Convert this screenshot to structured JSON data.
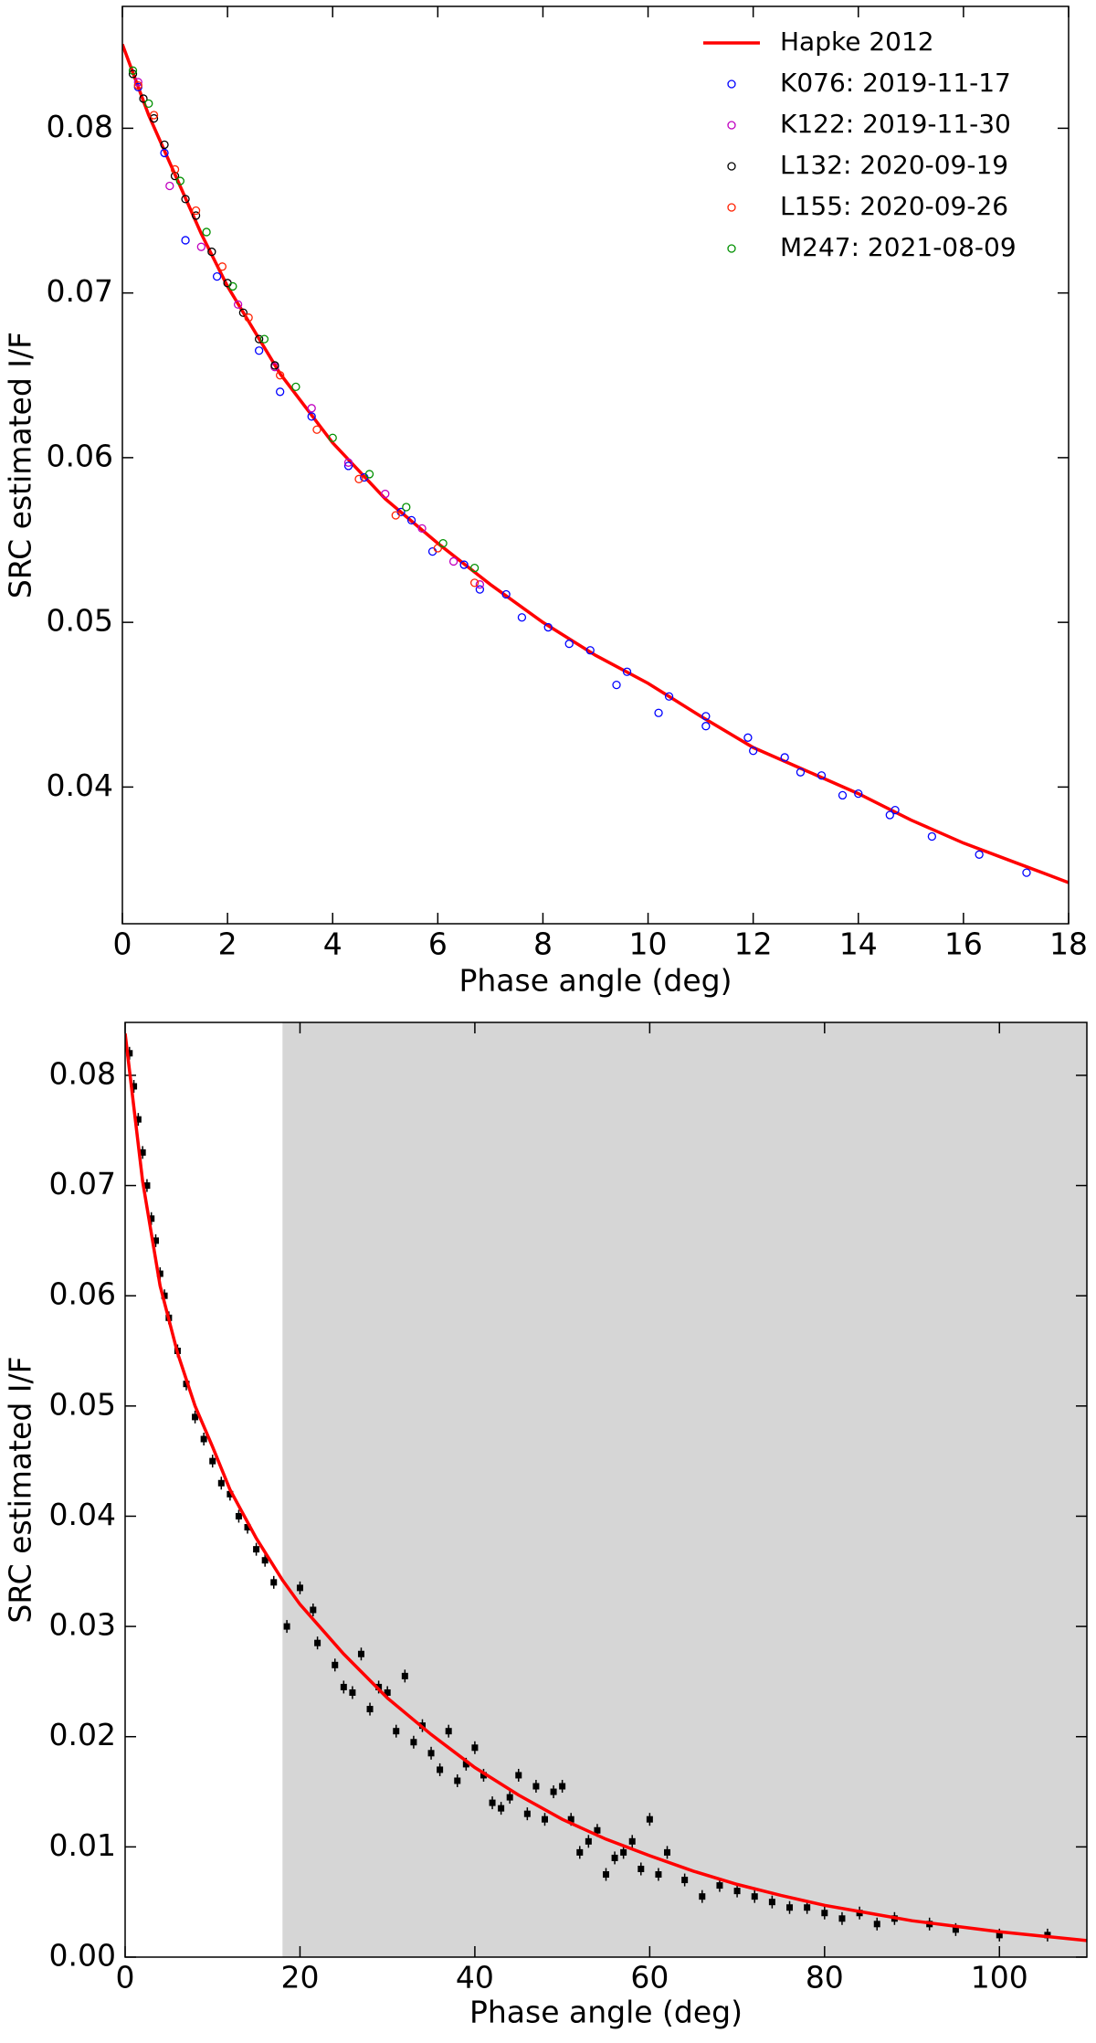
{
  "chart_data": [
    {
      "type": "scatter",
      "xlabel": "Phase angle (deg)",
      "ylabel": "SRC estimated I/F",
      "xlim": [
        0,
        18
      ],
      "ylim": [
        0.0317,
        0.0874
      ],
      "xticks": [
        0,
        2,
        4,
        6,
        8,
        10,
        12,
        14,
        16,
        18
      ],
      "yticks": [
        0.04,
        0.05,
        0.06,
        0.07,
        0.08
      ],
      "legend": "upper right",
      "series": [
        {
          "name": "Hapke 2012",
          "color": "#ff0000",
          "style": "line",
          "x": [
            0,
            0.5,
            1,
            1.5,
            2,
            3,
            4,
            5,
            6,
            7,
            8,
            9,
            10,
            11,
            12,
            13,
            14,
            15,
            16,
            17,
            18
          ],
          "values": [
            0.0851,
            0.0808,
            0.0772,
            0.0736,
            0.0704,
            0.0651,
            0.0609,
            0.0575,
            0.0548,
            0.0523,
            0.05,
            0.048,
            0.0463,
            0.0443,
            0.0424,
            0.041,
            0.0396,
            0.038,
            0.0366,
            0.0354,
            0.0342
          ]
        },
        {
          "name": "K076: 2019-11-17",
          "color": "#0000ff",
          "style": "open-circle",
          "x": [
            0.3,
            0.8,
            1.2,
            1.8,
            2.6,
            3,
            3.6,
            4.3,
            4.6,
            5.3,
            5.5,
            5.9,
            6.5,
            6.8,
            7.3,
            7.6,
            8.1,
            8.5,
            8.9,
            9.4,
            9.6,
            10.2,
            10.4,
            11.1,
            11.1,
            11.9,
            12,
            12.6,
            12.9,
            13.3,
            13.7,
            14,
            14.6,
            14.7,
            15.4,
            16.3,
            17.2
          ],
          "values": [
            0.0825,
            0.0785,
            0.0732,
            0.071,
            0.0665,
            0.064,
            0.0625,
            0.0595,
            0.0588,
            0.0567,
            0.0562,
            0.0543,
            0.0535,
            0.052,
            0.0517,
            0.0503,
            0.0497,
            0.0487,
            0.0483,
            0.0462,
            0.047,
            0.0445,
            0.0455,
            0.0437,
            0.0443,
            0.043,
            0.0422,
            0.0418,
            0.0409,
            0.0407,
            0.0395,
            0.0396,
            0.0383,
            0.0386,
            0.037,
            0.0359,
            0.0348
          ]
        },
        {
          "name": "K122: 2019-11-30",
          "color": "#c000c0",
          "style": "open-circle",
          "x": [
            0.3,
            0.9,
            1.5,
            2.2,
            2.9,
            3.6,
            4.3,
            5,
            5.7,
            6.3,
            6.8
          ],
          "values": [
            0.0828,
            0.0765,
            0.0728,
            0.0693,
            0.0655,
            0.063,
            0.0597,
            0.0578,
            0.0557,
            0.0537,
            0.0523
          ]
        },
        {
          "name": "L132: 2020-09-19",
          "color": "#000000",
          "style": "open-circle",
          "x": [
            0.2,
            0.4,
            0.6,
            0.8,
            1,
            1.2,
            1.4,
            1.7,
            2,
            2.3,
            2.6,
            2.9
          ],
          "values": [
            0.0833,
            0.0818,
            0.0806,
            0.079,
            0.0771,
            0.0757,
            0.0747,
            0.0725,
            0.0706,
            0.0688,
            0.0672,
            0.0656
          ]
        },
        {
          "name": "L155: 2020-09-26",
          "color": "#ff2000",
          "style": "open-circle",
          "x": [
            0.3,
            0.6,
            1,
            1.4,
            1.9,
            2.4,
            3,
            3.7,
            4.5,
            5.2,
            6,
            6.7
          ],
          "values": [
            0.0826,
            0.0808,
            0.0775,
            0.075,
            0.0716,
            0.0685,
            0.065,
            0.0617,
            0.0587,
            0.0565,
            0.0545,
            0.0524
          ]
        },
        {
          "name": "M247: 2021-08-09",
          "color": "#009000",
          "style": "open-circle",
          "x": [
            0.2,
            0.5,
            1.1,
            1.6,
            2.1,
            2.7,
            3.3,
            4,
            4.7,
            5.4,
            6.1,
            6.7
          ],
          "values": [
            0.0835,
            0.0815,
            0.0768,
            0.0737,
            0.0704,
            0.0672,
            0.0643,
            0.0612,
            0.059,
            0.057,
            0.0548,
            0.0533
          ]
        }
      ]
    },
    {
      "type": "scatter",
      "xlabel": "Phase angle (deg)",
      "ylabel": "SRC estimated I/F",
      "xlim": [
        0,
        110
      ],
      "ylim": [
        0,
        0.0848
      ],
      "xticks": [
        0,
        20,
        40,
        60,
        80,
        100
      ],
      "yticks": [
        {
          "value": 0,
          "label": "0.00"
        },
        0.01,
        0.02,
        0.03,
        0.04,
        0.05,
        0.06,
        0.07,
        0.08
      ],
      "shade_x": [
        18,
        110
      ],
      "shade_color": "#d6d6d6",
      "series": [
        {
          "color": "#000000",
          "style": "dot",
          "x": [
            0.5,
            1,
            1.5,
            2,
            2.5,
            3,
            3.5,
            4,
            4.5,
            5,
            6,
            7,
            8,
            9,
            10,
            11,
            12,
            13,
            14,
            15,
            16,
            17,
            18.5,
            20,
            21.5,
            22,
            24,
            25,
            26,
            27,
            28,
            29,
            30,
            31,
            32,
            33,
            34,
            35,
            36,
            37,
            38,
            39,
            40,
            41,
            42,
            43,
            44,
            45,
            46,
            47,
            48,
            49,
            50,
            51,
            52,
            53,
            54,
            55,
            56,
            57,
            58,
            59,
            60,
            61,
            62,
            64,
            66,
            68,
            70,
            72,
            74,
            76,
            78,
            80,
            82,
            84,
            86,
            88,
            92,
            95,
            100,
            105.5
          ],
          "values": [
            0.082,
            0.079,
            0.076,
            0.073,
            0.07,
            0.067,
            0.065,
            0.062,
            0.06,
            0.058,
            0.055,
            0.052,
            0.049,
            0.047,
            0.045,
            0.043,
            0.042,
            0.04,
            0.039,
            0.037,
            0.036,
            0.034,
            0.03,
            0.0335,
            0.0315,
            0.0285,
            0.0265,
            0.0245,
            0.024,
            0.0275,
            0.0225,
            0.0245,
            0.024,
            0.0205,
            0.0255,
            0.0195,
            0.021,
            0.0185,
            0.017,
            0.0205,
            0.016,
            0.0175,
            0.019,
            0.0165,
            0.014,
            0.0135,
            0.0145,
            0.0165,
            0.013,
            0.0155,
            0.0125,
            0.015,
            0.0155,
            0.0125,
            0.0095,
            0.0105,
            0.0115,
            0.0075,
            0.009,
            0.0095,
            0.0105,
            0.008,
            0.0125,
            0.0075,
            0.0095,
            0.007,
            0.0055,
            0.0065,
            0.006,
            0.0055,
            0.005,
            0.0045,
            0.0045,
            0.004,
            0.0035,
            0.004,
            0.003,
            0.0035,
            0.003,
            0.0025,
            0.002,
            0.002
          ]
        },
        {
          "color": "#ff0000",
          "style": "line",
          "x": [
            0,
            2,
            4,
            6,
            8,
            10,
            12,
            15,
            18,
            20,
            25,
            30,
            35,
            40,
            45,
            50,
            55,
            60,
            65,
            70,
            75,
            80,
            85,
            90,
            95,
            100,
            105,
            110
          ],
          "values": [
            0.0838,
            0.0704,
            0.0609,
            0.0548,
            0.05,
            0.0463,
            0.0424,
            0.038,
            0.0342,
            0.032,
            0.0275,
            0.0235,
            0.0202,
            0.0172,
            0.0147,
            0.0125,
            0.0107,
            0.0092,
            0.0078,
            0.0066,
            0.0056,
            0.0047,
            0.004,
            0.0033,
            0.0028,
            0.0023,
            0.0019,
            0.0015
          ]
        }
      ]
    }
  ]
}
